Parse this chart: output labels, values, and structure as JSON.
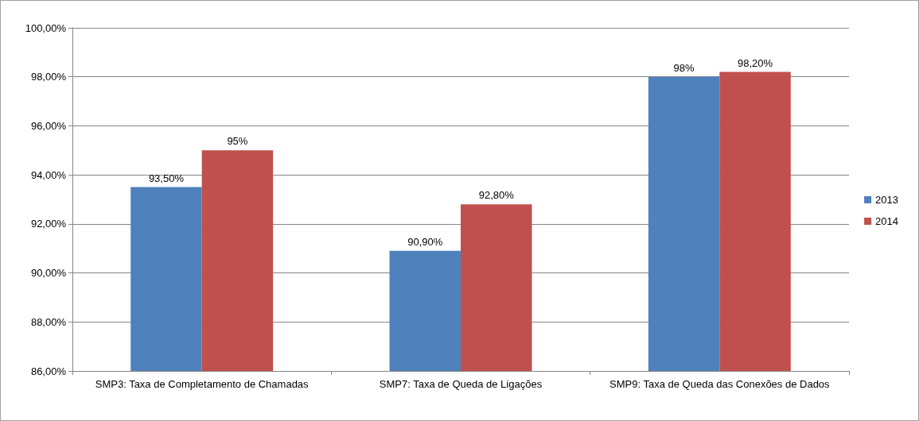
{
  "chart_data": {
    "type": "bar",
    "categories": [
      "SMP3: Taxa de Completamento de Chamadas",
      "SMP7: Taxa de Queda de Ligações",
      "SMP9: Taxa de Queda das Conexões de Dados"
    ],
    "series": [
      {
        "name": "2013",
        "color": "#4f81bd",
        "values": [
          93.5,
          90.9,
          98
        ],
        "value_labels": [
          "93,50%",
          "90,90%",
          "98%"
        ]
      },
      {
        "name": "2014",
        "color": "#c0504d",
        "values": [
          95,
          92.8,
          98.2
        ],
        "value_labels": [
          "95%",
          "92,80%",
          "98,20%"
        ]
      }
    ],
    "ylim": [
      86,
      100
    ],
    "yticks": [
      {
        "value": 86,
        "label": "86,00%"
      },
      {
        "value": 88,
        "label": "88,00%"
      },
      {
        "value": 90,
        "label": "90,00%"
      },
      {
        "value": 92,
        "label": "92,00%"
      },
      {
        "value": 94,
        "label": "94,00%"
      },
      {
        "value": 96,
        "label": "96,00%"
      },
      {
        "value": 98,
        "label": "98,00%"
      },
      {
        "value": 100,
        "label": "100,00%"
      }
    ],
    "grid": "y",
    "legend": "right"
  }
}
